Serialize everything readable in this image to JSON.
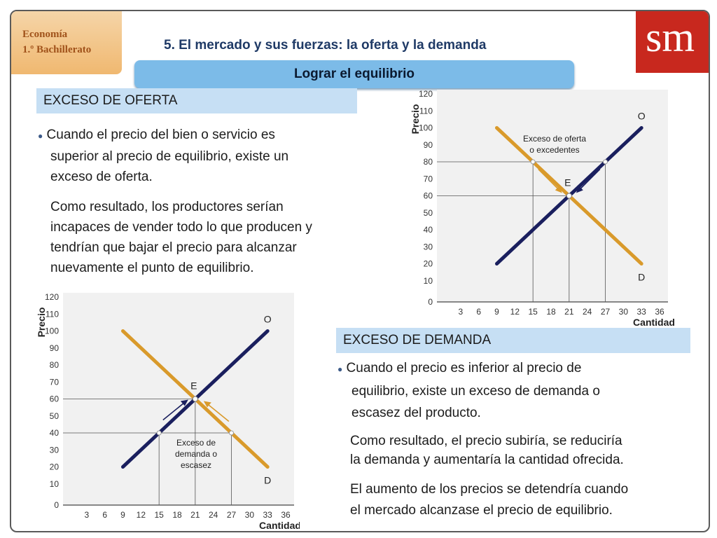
{
  "header": {
    "course_line1": "Economía",
    "course_line2": "1.º Bachillerato",
    "logo": "sm",
    "title": "5. El mercado y sus fuerzas: la oferta y la demanda",
    "subtitle": "Lograr el equilibrio"
  },
  "colors": {
    "supply": "#1a1f5e",
    "demand": "#d99a2b",
    "band": "#c6dff4",
    "logo": "#c8281e"
  },
  "oferta_section": {
    "heading": "EXCESO DE OFERTA",
    "bullet_lines": [
      "Cuando el precio del bien o servicio es",
      "superior al precio de equilibrio, existe un",
      "exceso de oferta."
    ],
    "para_lines": [
      "Como resultado, los productores serían",
      "incapaces de vender todo lo que producen y",
      "tendrían que bajar el precio para alcanzar",
      "nuevamente el punto de equilibrio."
    ]
  },
  "demanda_section": {
    "heading": "EXCESO DE DEMANDA",
    "bullet_lines": [
      "Cuando el precio es inferior al precio de",
      "equilibrio, existe un exceso de demanda o",
      "escasez del producto."
    ],
    "para1_lines": [
      "Como resultado, el precio subiría, se reduciría",
      "la demanda y aumentaría la cantidad ofrecida."
    ],
    "para2_lines": [
      "El aumento de los precios se detendría cuando",
      "el mercado alcanzase el precio de equilibrio."
    ]
  },
  "chart_data": [
    {
      "type": "line",
      "ylabel": "Precio",
      "xlabel": "Cantidad",
      "x_ticks": [
        "3",
        "6",
        "9",
        "12",
        "15",
        "18",
        "21",
        "24",
        "27",
        "30",
        "33",
        "36"
      ],
      "y_ticks": [
        "10",
        "20",
        "30",
        "40",
        "50",
        "60",
        "70",
        "80",
        "90",
        "100",
        "110",
        "120"
      ],
      "origin_label": "0",
      "xlim": [
        0,
        36
      ],
      "ylim": [
        0,
        120
      ],
      "series": [
        {
          "name": "O",
          "x": [
            9,
            33
          ],
          "y": [
            20,
            100
          ]
        },
        {
          "name": "D",
          "x": [
            9,
            33
          ],
          "y": [
            100,
            20
          ]
        }
      ],
      "equilibrium": {
        "label": "E",
        "x": 21,
        "y": 60
      },
      "price_level": 80,
      "marked_points": [
        {
          "x": 15,
          "y": 80
        },
        {
          "x": 27,
          "y": 80
        }
      ],
      "annotation_lines": [
        "Exceso de oferta",
        "o excedentes"
      ]
    },
    {
      "type": "line",
      "ylabel": "Precio",
      "xlabel": "Cantidad",
      "x_ticks": [
        "3",
        "6",
        "9",
        "12",
        "15",
        "18",
        "21",
        "24",
        "27",
        "30",
        "33",
        "36"
      ],
      "y_ticks": [
        "10",
        "20",
        "30",
        "40",
        "50",
        "60",
        "70",
        "80",
        "90",
        "100",
        "110",
        "120"
      ],
      "origin_label": "0",
      "xlim": [
        0,
        36
      ],
      "ylim": [
        0,
        120
      ],
      "series": [
        {
          "name": "O",
          "x": [
            9,
            33
          ],
          "y": [
            20,
            100
          ]
        },
        {
          "name": "D",
          "x": [
            9,
            33
          ],
          "y": [
            100,
            20
          ]
        }
      ],
      "equilibrium": {
        "label": "E",
        "x": 21,
        "y": 60
      },
      "price_level": 40,
      "marked_points": [
        {
          "x": 15,
          "y": 40
        },
        {
          "x": 27,
          "y": 40
        }
      ],
      "annotation_lines": [
        "Exceso de",
        "demanda o",
        "escasez"
      ]
    }
  ]
}
